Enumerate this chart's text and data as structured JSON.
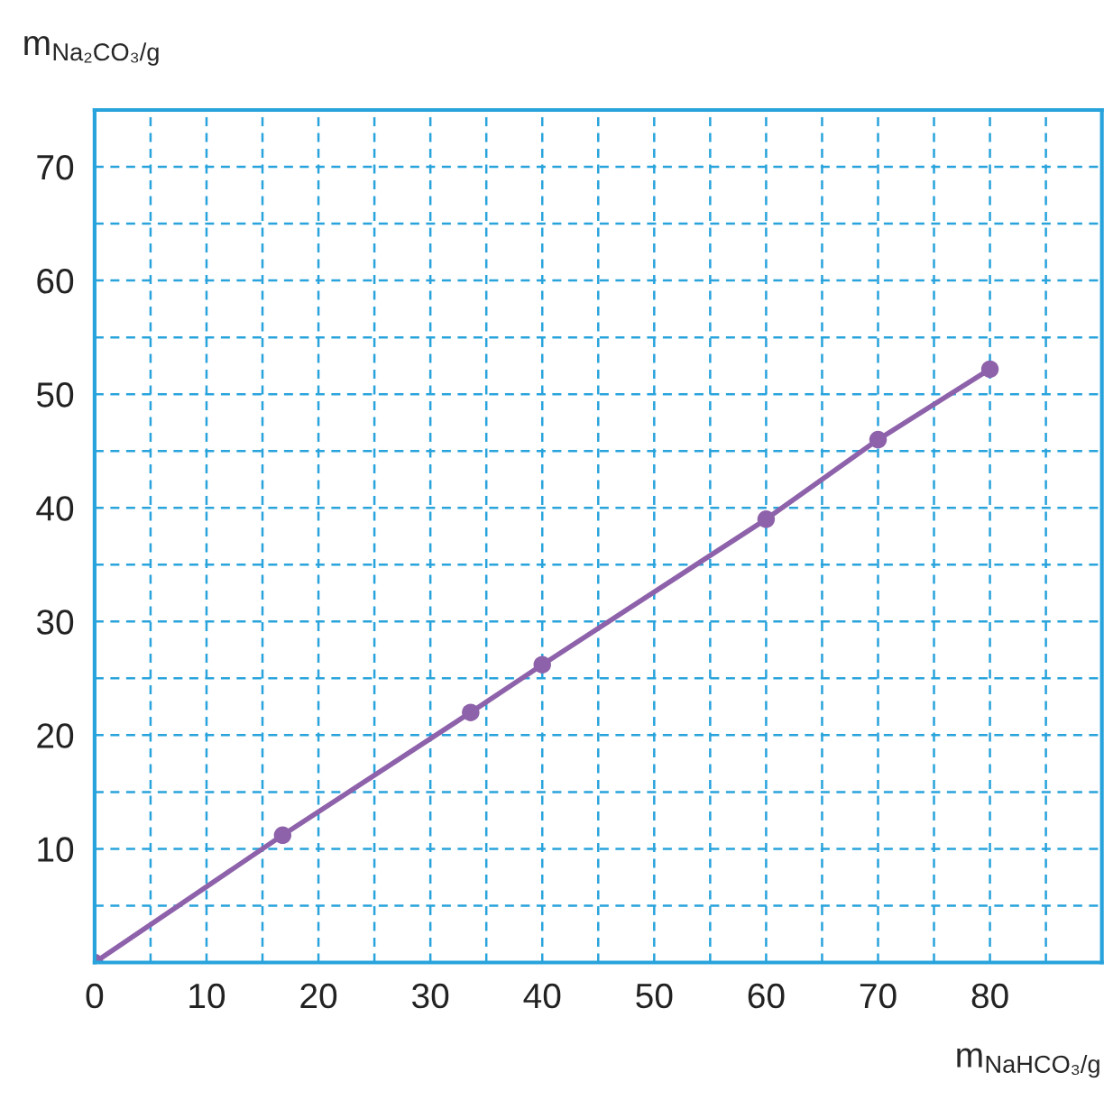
{
  "chart_data": {
    "type": "line",
    "xlabel": "m$_{NaHCO₃/g}$",
    "ylabel": "m$_{Na₂CO₃/g}$",
    "x": [
      0,
      16.8,
      33.6,
      40,
      60,
      70,
      80
    ],
    "series": [
      {
        "color": "#8e62aa",
        "values": [
          0,
          11.2,
          22,
          26.2,
          39,
          46,
          52.2
        ]
      }
    ],
    "xlim": [
      0,
      90
    ],
    "ylim": [
      0,
      75
    ],
    "xticks": [
      0,
      {
        "value": 5,
        "label": null
      },
      10,
      {
        "value": 15,
        "label": null
      },
      20,
      {
        "value": 25,
        "label": null
      },
      30,
      {
        "value": 35,
        "label": null
      },
      40,
      {
        "value": 45,
        "label": null
      },
      50,
      {
        "value": 55,
        "label": null
      },
      60,
      {
        "value": 65,
        "label": null
      },
      70,
      {
        "value": 75,
        "label": null
      },
      80,
      {
        "value": 85,
        "label": null
      }
    ],
    "yticks": [
      {
        "value": 5,
        "label": null
      },
      10,
      {
        "value": 15,
        "label": null
      },
      20,
      {
        "value": 25,
        "label": null
      },
      30,
      {
        "value": 35,
        "label": null
      },
      40,
      {
        "value": 45,
        "label": null
      },
      50,
      {
        "value": 55,
        "label": null
      },
      60,
      {
        "value": 65,
        "label": null
      },
      70
    ],
    "grid": true,
    "marker": "circle",
    "line_style": "solid"
  }
}
